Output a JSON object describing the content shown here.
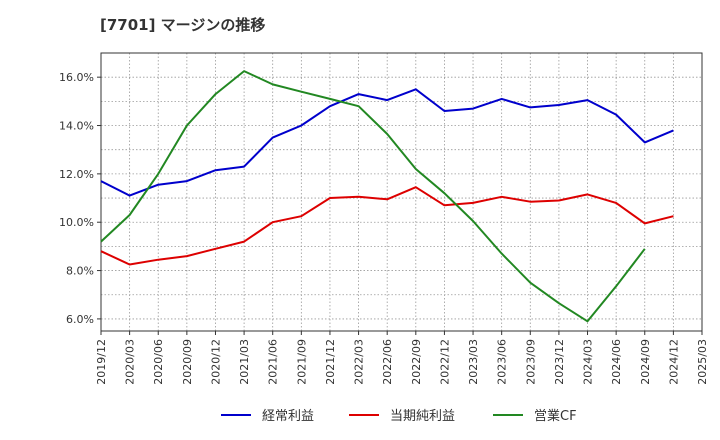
{
  "chart_data": {
    "type": "line",
    "title": "[7701]  マージンの推移",
    "x": [
      "2019/12",
      "2020/03",
      "2020/06",
      "2020/09",
      "2020/12",
      "2021/03",
      "2021/06",
      "2021/09",
      "2021/12",
      "2022/03",
      "2022/06",
      "2022/09",
      "2022/12",
      "2023/03",
      "2023/06",
      "2023/09",
      "2023/12",
      "2024/03",
      "2024/06",
      "2024/09",
      "2024/12",
      "2025/03"
    ],
    "ylim": [
      5.5,
      17.0
    ],
    "yticks": [
      "6.0%",
      "8.0%",
      "10.0%",
      "12.0%",
      "14.0%",
      "16.0%"
    ],
    "ytick_values": [
      6,
      8,
      10,
      12,
      14,
      16
    ],
    "grid": true,
    "legend_position": "bottom",
    "series": [
      {
        "name": "経常利益",
        "color": "#0000cc",
        "values": [
          11.7,
          11.1,
          11.55,
          11.7,
          12.15,
          12.3,
          13.5,
          14.0,
          14.8,
          15.3,
          15.05,
          15.5,
          14.6,
          14.7,
          15.1,
          14.75,
          14.85,
          15.05,
          14.45,
          13.3,
          13.8,
          null
        ]
      },
      {
        "name": "当期純利益",
        "color": "#dd0000",
        "values": [
          8.8,
          8.25,
          8.45,
          8.6,
          8.9,
          9.2,
          10.0,
          10.25,
          11.0,
          11.05,
          10.95,
          11.45,
          10.7,
          10.8,
          11.05,
          10.85,
          10.9,
          11.15,
          10.8,
          9.95,
          10.25,
          null
        ]
      },
      {
        "name": "営業CF",
        "color": "#228822",
        "values": [
          9.2,
          10.3,
          12.0,
          14.0,
          15.3,
          16.25,
          15.7,
          15.4,
          15.1,
          14.8,
          13.65,
          12.2,
          11.2,
          10.05,
          8.7,
          7.5,
          6.65,
          5.9,
          7.35,
          8.9,
          null,
          null
        ]
      }
    ]
  }
}
